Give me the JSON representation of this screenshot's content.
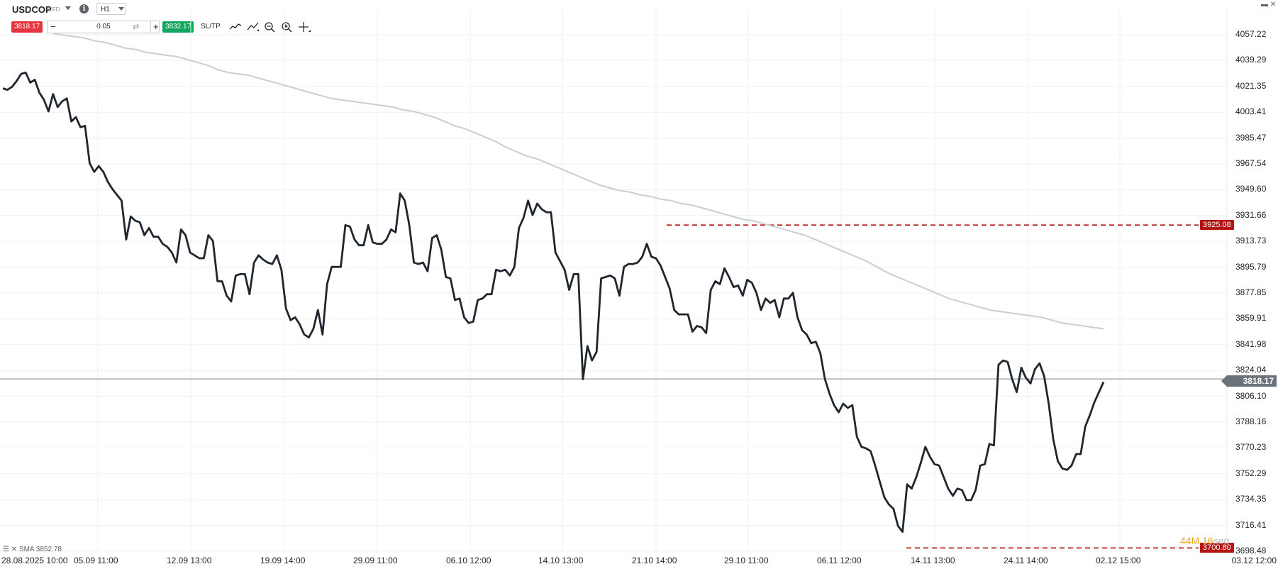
{
  "toolbar": {
    "symbol": "USDCOP",
    "instrument_type": "CFD",
    "timeframe": "H1",
    "bid": "3818.17",
    "ask": "3832.17",
    "quantity": "0.05",
    "minus": "−",
    "plus": "+",
    "sltp_label": "SL/TP",
    "info_glyph": "i"
  },
  "window": {
    "controls": "▬ ✕"
  },
  "chart_data": {
    "type": "line",
    "title": "",
    "y_ticks": [
      "4057.22",
      "4039.29",
      "4021.35",
      "4003.41",
      "3985.47",
      "3967.54",
      "3949.60",
      "3931.66",
      "3913.73",
      "3895.79",
      "3877.85",
      "3859.91",
      "3841.98",
      "3824.04",
      "3806.10",
      "3788.16",
      "3770.23",
      "3752.29",
      "3734.35",
      "3716.41",
      "3698.48"
    ],
    "x_ticks": [
      "28.08.2025 10:00",
      "05.09 11:00",
      "12.09 13:00",
      "19.09 14:00",
      "29.09 11:00",
      "06.10 12:00",
      "14.10 13:00",
      "21.10 14:00",
      "29.10 11:00",
      "06.11 12:00",
      "14.11 13:00",
      "24.11 14:00",
      "02.12 15:00",
      "03.12 12:00"
    ],
    "ylim": [
      3698.48,
      4057.22
    ],
    "grid": true,
    "current_price": "3818.17",
    "levels": [
      {
        "label": "3925.08",
        "value": 3925.08
      },
      {
        "label": "3700.80",
        "value": 3700.8
      }
    ],
    "series": [
      {
        "style": "price",
        "color": "#1f262d",
        "values": [
          4020,
          4019,
          4021,
          4025,
          4030,
          4031,
          4024,
          4026,
          4017,
          4012,
          4004,
          4016,
          4007,
          4011,
          4013,
          3997,
          4000,
          3993,
          3994,
          3968,
          3962,
          3966,
          3962,
          3955,
          3950,
          3946,
          3942,
          3915,
          3931,
          3928,
          3927,
          3918,
          3923,
          3917,
          3917,
          3912,
          3910,
          3906,
          3899,
          3922,
          3918,
          3906,
          3904,
          3902,
          3902,
          3918,
          3914,
          3886,
          3886,
          3876,
          3872,
          3890,
          3891,
          3891,
          3877,
          3899,
          3904,
          3901,
          3899,
          3898,
          3904,
          3894,
          3867,
          3859,
          3861,
          3856,
          3849,
          3847,
          3853,
          3866,
          3849,
          3884,
          3896,
          3896,
          3896,
          3925,
          3924,
          3915,
          3911,
          3911,
          3925,
          3913,
          3912,
          3912,
          3915,
          3922,
          3920,
          3947,
          3942,
          3925,
          3899,
          3898,
          3899,
          3893,
          3916,
          3918,
          3908,
          3889,
          3888,
          3873,
          3874,
          3861,
          3857,
          3858,
          3873,
          3874,
          3877,
          3877,
          3894,
          3893,
          3894,
          3890,
          3896,
          3923,
          3930,
          3942,
          3932,
          3940,
          3936,
          3934,
          3934,
          3906,
          3900,
          3894,
          3880,
          3891,
          3891,
          3818,
          3841,
          3831,
          3837,
          3888,
          3889,
          3890,
          3888,
          3876,
          3896,
          3898,
          3898,
          3899,
          3903,
          3912,
          3903,
          3902,
          3897,
          3889,
          3881,
          3866,
          3863,
          3863,
          3863,
          3851,
          3855,
          3854,
          3850,
          3880,
          3886,
          3884,
          3895,
          3889,
          3882,
          3883,
          3876,
          3887,
          3885,
          3878,
          3866,
          3874,
          3871,
          3873,
          3861,
          3874,
          3874,
          3878,
          3861,
          3852,
          3849,
          3843,
          3844,
          3836,
          3818,
          3808,
          3800,
          3795,
          3801,
          3798,
          3800,
          3778,
          3771,
          3770,
          3768,
          3758,
          3747,
          3736,
          3731,
          3728,
          3716,
          3712,
          3745,
          3742,
          3750,
          3760,
          3771,
          3764,
          3759,
          3758,
          3750,
          3742,
          3737,
          3742,
          3741,
          3734,
          3734,
          3741,
          3758,
          3759,
          3773,
          3772,
          3828,
          3831,
          3830,
          3818,
          3809,
          3826,
          3819,
          3815,
          3825,
          3829,
          3820,
          3801,
          3776,
          3761,
          3756,
          3755,
          3758,
          3766,
          3766,
          3785,
          3793,
          3802,
          3809,
          3816
        ]
      },
      {
        "style": "sma",
        "name": "SMA 3852.78",
        "color": "#c8cfd3",
        "values": [
          4058,
          4057,
          4056,
          4055,
          4053,
          4052,
          4050,
          4048,
          4047,
          4045,
          4044,
          4043,
          4042,
          4040,
          4038,
          4036,
          4033,
          4031,
          4030,
          4029,
          4027,
          4025,
          4023,
          4021,
          4019,
          4017,
          4015,
          4013,
          4012,
          4011,
          4010,
          4009,
          4008,
          4007,
          4005,
          4004,
          4002,
          4000,
          3997,
          3994,
          3992,
          3989,
          3986,
          3983,
          3979,
          3976,
          3973,
          3971,
          3968,
          3965,
          3962,
          3959,
          3956,
          3953,
          3951,
          3949,
          3948,
          3946,
          3945,
          3943,
          3942,
          3940,
          3939,
          3937,
          3935,
          3933,
          3931,
          3929,
          3928,
          3926,
          3924,
          3922,
          3920,
          3918,
          3915,
          3912,
          3909,
          3906,
          3903,
          3900,
          3896,
          3892,
          3889,
          3886,
          3883,
          3880,
          3877,
          3874,
          3872,
          3870,
          3868,
          3866,
          3865,
          3864,
          3863,
          3862,
          3861,
          3859,
          3857,
          3856,
          3855,
          3854,
          3853
        ]
      }
    ],
    "countdown": {
      "minutes": "44",
      "minutes_unit": "M",
      "seconds": "16",
      "seconds_unit": "seg"
    }
  }
}
